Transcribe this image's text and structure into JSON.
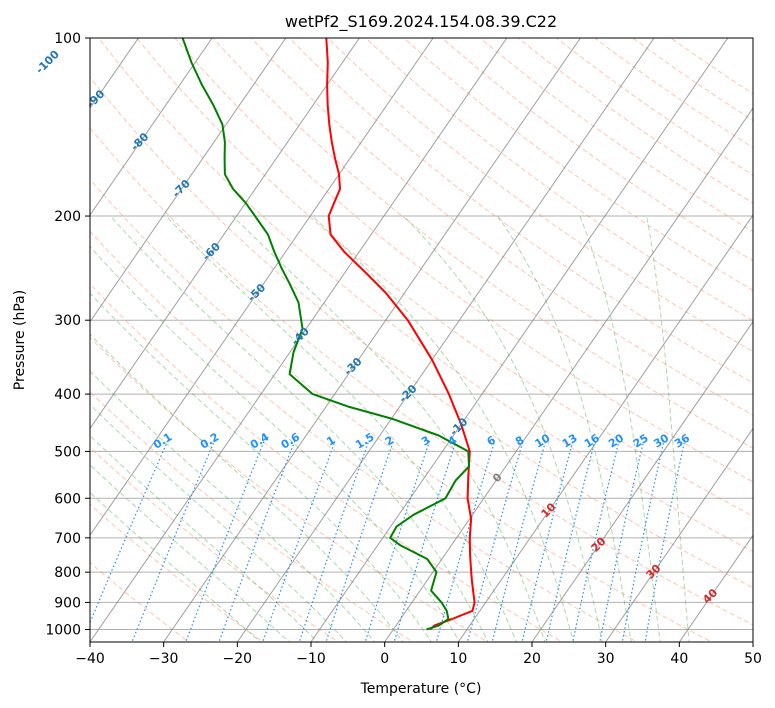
{
  "chart_data": {
    "type": "line",
    "title": "wetPf2_S169.2024.154.08.39.C22",
    "xlabel": "Temperature (°C)",
    "ylabel": "Pressure (hPa)",
    "xlim": [
      -40,
      50
    ],
    "ylim": [
      1050,
      100
    ],
    "y_scale": "log",
    "grid": true,
    "skew": "skew-T log-P",
    "x_ticks": [
      "−40",
      "−30",
      "−20",
      "−10",
      "0",
      "10",
      "20",
      "30",
      "40",
      "50"
    ],
    "y_ticks": [
      "100",
      "200",
      "300",
      "400",
      "500",
      "600",
      "700",
      "800",
      "900",
      "1000"
    ],
    "series": [
      {
        "color": "#ff0000",
        "points": [
          {
            "p": 1000,
            "t": 5.0
          },
          {
            "p": 985,
            "t": 5.2
          },
          {
            "p": 960,
            "t": 7.0
          },
          {
            "p": 930,
            "t": 9.0
          },
          {
            "p": 900,
            "t": 8.5
          },
          {
            "p": 860,
            "t": 7.2
          },
          {
            "p": 830,
            "t": 6.2
          },
          {
            "p": 800,
            "t": 5.2
          },
          {
            "p": 750,
            "t": 3.5
          },
          {
            "p": 700,
            "t": 1.8
          },
          {
            "p": 650,
            "t": 0.2
          },
          {
            "p": 600,
            "t": -2.2
          },
          {
            "p": 550,
            "t": -4.2
          },
          {
            "p": 500,
            "t": -6.3
          },
          {
            "p": 450,
            "t": -10.0
          },
          {
            "p": 400,
            "t": -14.5
          },
          {
            "p": 350,
            "t": -20.0
          },
          {
            "p": 300,
            "t": -27.0
          },
          {
            "p": 270,
            "t": -32.5
          },
          {
            "p": 250,
            "t": -37.0
          },
          {
            "p": 230,
            "t": -42.0
          },
          {
            "p": 215,
            "t": -45.5
          },
          {
            "p": 200,
            "t": -47.5
          },
          {
            "p": 190,
            "t": -48.0
          },
          {
            "p": 180,
            "t": -48.5
          },
          {
            "p": 170,
            "t": -50.0
          },
          {
            "p": 160,
            "t": -52.0
          },
          {
            "p": 150,
            "t": -54.0
          },
          {
            "p": 140,
            "t": -56.0
          },
          {
            "p": 130,
            "t": -58.0
          },
          {
            "p": 120,
            "t": -60.0
          },
          {
            "p": 110,
            "t": -62.0
          },
          {
            "p": 100,
            "t": -64.5
          }
        ]
      },
      {
        "color": "#008000",
        "points": [
          {
            "p": 1000,
            "t": 4.5
          },
          {
            "p": 985,
            "t": 5.8
          },
          {
            "p": 960,
            "t": 6.5
          },
          {
            "p": 930,
            "t": 5.5
          },
          {
            "p": 900,
            "t": 4.0
          },
          {
            "p": 860,
            "t": 1.5
          },
          {
            "p": 830,
            "t": 1.0
          },
          {
            "p": 800,
            "t": 0.5
          },
          {
            "p": 760,
            "t": -2.0
          },
          {
            "p": 720,
            "t": -7.0
          },
          {
            "p": 700,
            "t": -9.0
          },
          {
            "p": 670,
            "t": -9.2
          },
          {
            "p": 640,
            "t": -8.0
          },
          {
            "p": 600,
            "t": -5.2
          },
          {
            "p": 560,
            "t": -5.5
          },
          {
            "p": 530,
            "t": -5.0
          },
          {
            "p": 500,
            "t": -6.5
          },
          {
            "p": 470,
            "t": -12.0
          },
          {
            "p": 440,
            "t": -20.0
          },
          {
            "p": 420,
            "t": -27.0
          },
          {
            "p": 400,
            "t": -33.0
          },
          {
            "p": 370,
            "t": -38.0
          },
          {
            "p": 340,
            "t": -39.5
          },
          {
            "p": 310,
            "t": -40.5
          },
          {
            "p": 280,
            "t": -43.5
          },
          {
            "p": 260,
            "t": -46.5
          },
          {
            "p": 245,
            "t": -49.0
          },
          {
            "p": 230,
            "t": -51.5
          },
          {
            "p": 215,
            "t": -54.0
          },
          {
            "p": 200,
            "t": -57.5
          },
          {
            "p": 190,
            "t": -60.0
          },
          {
            "p": 180,
            "t": -63.0
          },
          {
            "p": 170,
            "t": -65.5
          },
          {
            "p": 160,
            "t": -67.0
          },
          {
            "p": 150,
            "t": -68.5
          },
          {
            "p": 140,
            "t": -70.5
          },
          {
            "p": 130,
            "t": -73.5
          },
          {
            "p": 120,
            "t": -77.0
          },
          {
            "p": 110,
            "t": -80.5
          },
          {
            "p": 100,
            "t": -84.0
          }
        ]
      }
    ],
    "isotherm_labels": [
      "-100",
      "-90",
      "-80",
      "-70",
      "-60",
      "-50",
      "-40",
      "-30",
      "-20",
      "-10",
      "0",
      "10",
      "20",
      "30",
      "40"
    ],
    "mixing_ratio_labels": [
      "0.1",
      "0.2",
      "0.4",
      "0.6",
      "1",
      "1.5",
      "2",
      "3",
      "4",
      "6",
      "8",
      "10",
      "13",
      "16",
      "20",
      "25",
      "30",
      "36"
    ],
    "mixing_ratio_values": [
      0.1,
      0.2,
      0.4,
      0.6,
      1,
      1.5,
      2,
      3,
      4,
      6,
      8,
      10,
      13,
      16,
      20,
      25,
      30,
      36
    ],
    "colors": {
      "isotherm_cold": "#1f77b4",
      "isotherm_zero": "#808080",
      "isotherm_warm": "#d62728",
      "mixing_ratio": "#1e90ff",
      "dry_adiabat": "#ff7f50",
      "moist_adiabat": "#2ca02c",
      "grid": "#b0b0b0",
      "temperature": "#ff0000",
      "dewpoint": "#008000"
    }
  }
}
